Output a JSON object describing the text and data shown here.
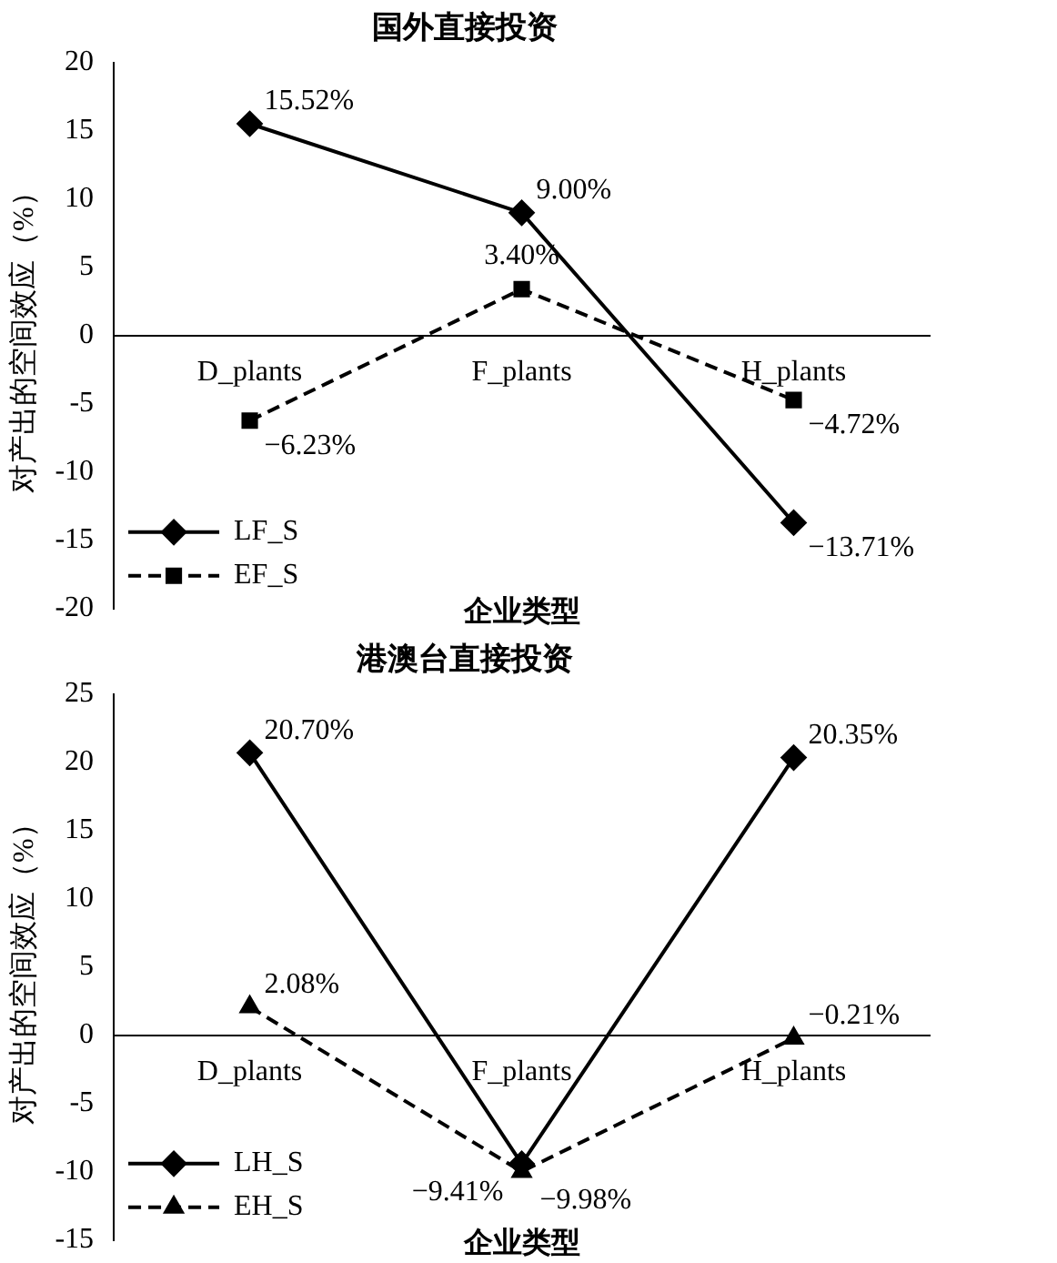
{
  "chart_data": [
    {
      "type": "line",
      "title": "国外直接投资",
      "xlabel": "企业类型",
      "ylabel": "对产出的空间效应（%）",
      "categories": [
        "D_plants",
        "F_plants",
        "H_plants"
      ],
      "ylim": [
        -20,
        20
      ],
      "yticks": [
        -20,
        -15,
        -10,
        -5,
        0,
        5,
        10,
        15,
        20
      ],
      "grid": false,
      "legend": "bottom left",
      "series": [
        {
          "name": "LF_S",
          "color": "#000000",
          "marker": "diamond",
          "line_style": "solid",
          "values": [
            15.52,
            9.0,
            -13.71
          ],
          "value_labels": [
            "15.52%",
            "9.00%",
            "−13.71%"
          ]
        },
        {
          "name": "EF_S",
          "color": "#000000",
          "marker": "square",
          "line_style": "dashed",
          "values": [
            -6.23,
            3.4,
            -4.72
          ],
          "value_labels": [
            "−6.23%",
            "3.40%",
            "−4.72%"
          ]
        }
      ]
    },
    {
      "type": "line",
      "title": "港澳台直接投资",
      "xlabel": "企业类型",
      "ylabel": "对产出的空间效应（%）",
      "categories": [
        "D_plants",
        "F_plants",
        "H_plants"
      ],
      "ylim": [
        -15,
        25
      ],
      "yticks": [
        -15,
        -10,
        -5,
        0,
        5,
        10,
        15,
        20,
        25
      ],
      "grid": false,
      "legend": "bottom left",
      "series": [
        {
          "name": "LH_S",
          "color": "#000000",
          "marker": "diamond",
          "line_style": "solid",
          "values": [
            20.7,
            -9.41,
            20.35
          ],
          "value_labels": [
            "20.70%",
            "−9.41%",
            "20.35%"
          ]
        },
        {
          "name": "EH_S",
          "color": "#000000",
          "marker": "triangle",
          "line_style": "dashed",
          "values": [
            2.08,
            -9.98,
            -0.21
          ],
          "value_labels": [
            "2.08%",
            "−9.98%",
            "−0.21%"
          ]
        }
      ]
    }
  ]
}
